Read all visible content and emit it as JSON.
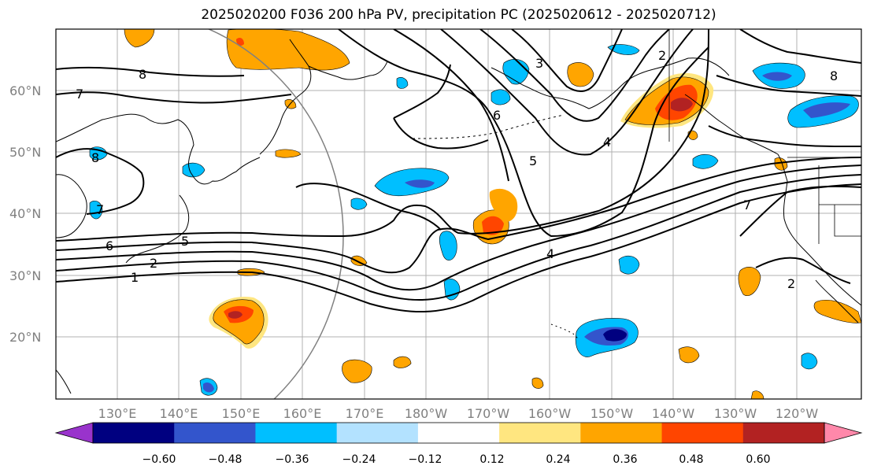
{
  "title": "2025020200 F036 200 hPa PV, precipitation PC (2025020612 - 2025020712)",
  "map": {
    "lat_labels": [
      "60°N",
      "50°N",
      "40°N",
      "30°N",
      "20°N"
    ],
    "lon_labels": [
      "130°E",
      "140°E",
      "150°E",
      "160°E",
      "170°E",
      "180°W",
      "170°W",
      "160°W",
      "150°W",
      "140°W",
      "130°W",
      "120°W"
    ],
    "pv_contour_labels": [
      "8",
      "7",
      "6",
      "5",
      "2",
      "1",
      "7",
      "8",
      "6",
      "5",
      "4",
      "4",
      "3",
      "7",
      "2",
      "2",
      "8"
    ]
  },
  "colorbar": {
    "tick_labels": [
      "−0.60",
      "−0.48",
      "−0.36",
      "−0.24",
      "−0.12",
      "0.12",
      "0.24",
      "0.36",
      "0.48",
      "0.60"
    ],
    "colors": [
      "#9933cc",
      "#000080",
      "#3355cc",
      "#00bfff",
      "#b3e2ff",
      "#ffffff",
      "#ffe680",
      "#ffa500",
      "#ff4500",
      "#b22222",
      "#ff88aa"
    ]
  }
}
